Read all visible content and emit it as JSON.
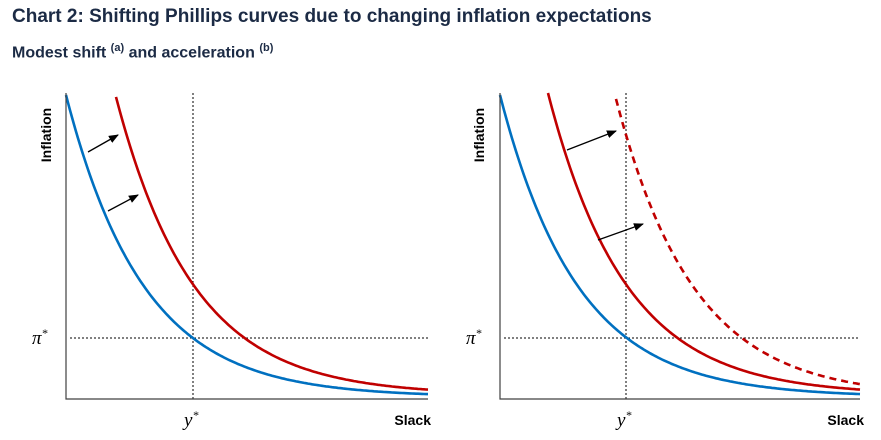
{
  "title": "Chart 2: Shifting Phillips curves due to changing inflation expectations",
  "subtitle": {
    "text1": "Modest shift",
    "sup1": "(a)",
    "text2": "and acceleration",
    "sup2": "(b)"
  },
  "panels": [
    {
      "ylabel": "Inflation",
      "xlabel": "Slack",
      "pi_label": "π",
      "y_label": "y",
      "star": "*"
    },
    {
      "ylabel": "Inflation",
      "xlabel": "Slack",
      "pi_label": "π",
      "y_label": "y",
      "star": "*"
    }
  ],
  "colors": {
    "original_curve": "#0070c0",
    "shifted_curve": "#c00000",
    "axis": "#404040",
    "text": "#1c2b45"
  }
}
